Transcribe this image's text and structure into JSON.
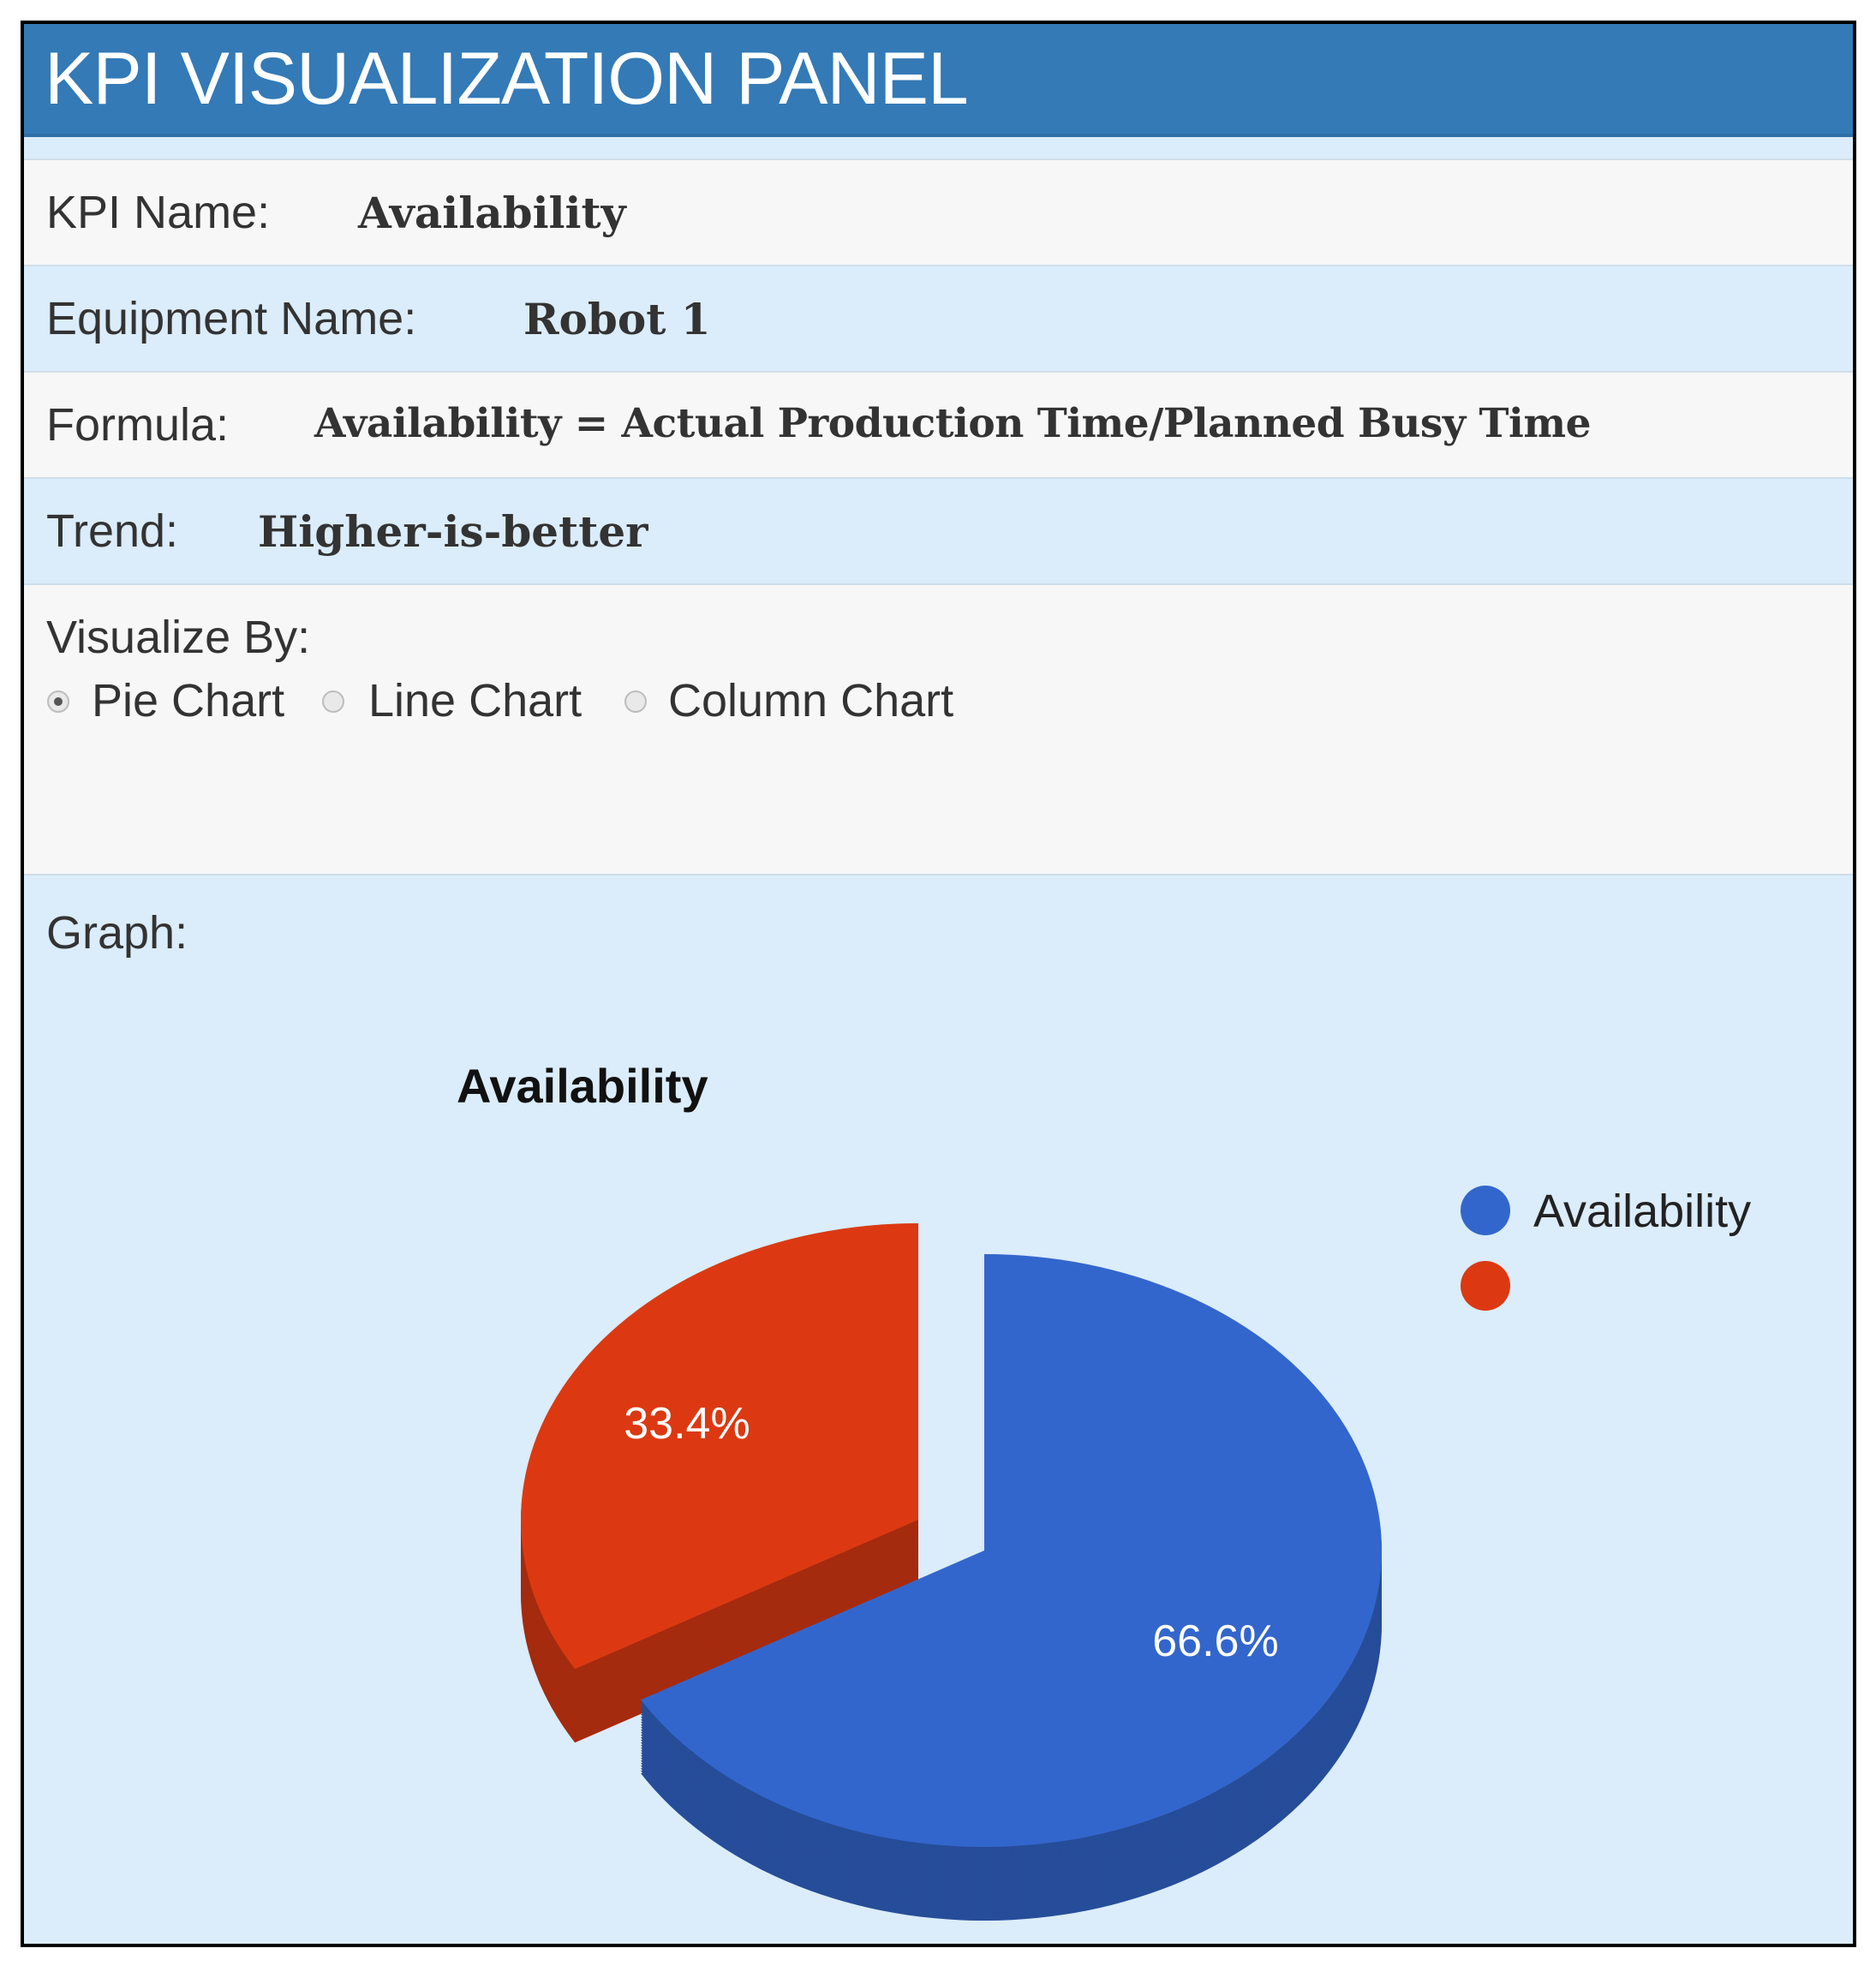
{
  "header": {
    "title": "KPI VISUALIZATION PANEL"
  },
  "fields": {
    "kpi_name": {
      "label": "KPI Name:",
      "value": "Availability"
    },
    "equipment_name": {
      "label": "Equipment Name:",
      "value": "Robot 1"
    },
    "formula": {
      "label": "Formula:",
      "value": "Availability = Actual Production Time/Planned Busy Time"
    },
    "trend": {
      "label": "Trend:",
      "value": "Higher-is-better"
    }
  },
  "visualize": {
    "label": "Visualize By:",
    "options": [
      {
        "label": "Pie Chart",
        "selected": true
      },
      {
        "label": "Line Chart",
        "selected": false
      },
      {
        "label": "Column Chart",
        "selected": false
      }
    ]
  },
  "graph": {
    "label": "Graph:"
  },
  "chart_data": {
    "type": "pie",
    "style": "3d-exploded",
    "title": "Availability",
    "categories": [
      "Availability",
      ""
    ],
    "values": [
      66.6,
      33.4
    ],
    "data_labels": [
      "66.6%",
      "33.4%"
    ],
    "colors": [
      "#3366cc",
      "#dc3912"
    ],
    "legend": "right"
  }
}
